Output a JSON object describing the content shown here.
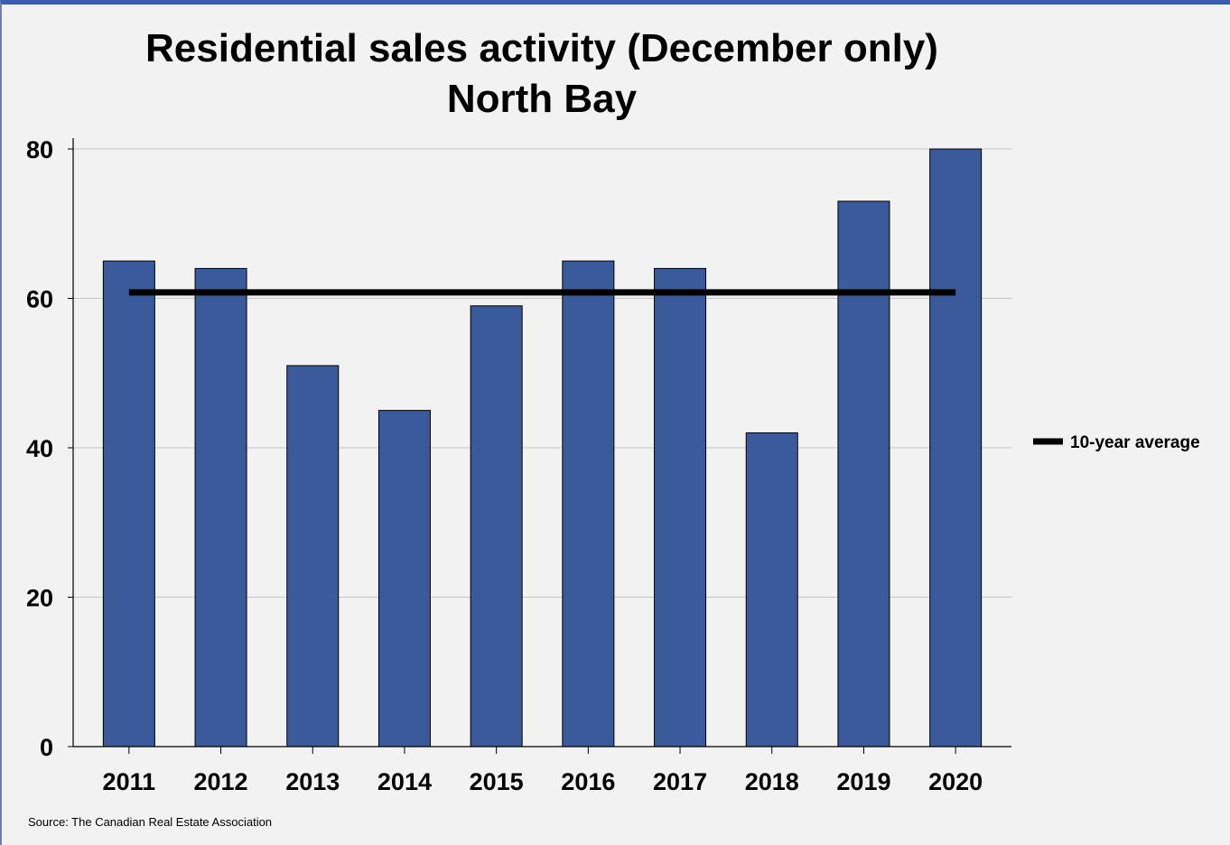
{
  "chart_data": {
    "type": "bar",
    "title": "Residential sales activity (December only)",
    "subtitle": "North Bay",
    "categories": [
      "2011",
      "2012",
      "2013",
      "2014",
      "2015",
      "2016",
      "2017",
      "2018",
      "2019",
      "2020"
    ],
    "series": [
      {
        "values": [
          65,
          64,
          51,
          45,
          59,
          65,
          64,
          42,
          73,
          80
        ],
        "color": "#3a5a9b"
      }
    ],
    "reference_line": {
      "name": "10-year average",
      "value": 60.8,
      "color": "#000000"
    },
    "ylim": [
      0,
      80
    ],
    "yticks": [
      0,
      20,
      40,
      60,
      80
    ],
    "grid": true,
    "legend_position": "right",
    "xlabel": "",
    "ylabel": ""
  },
  "source_text": "Source: The Canadian Real Estate Association"
}
